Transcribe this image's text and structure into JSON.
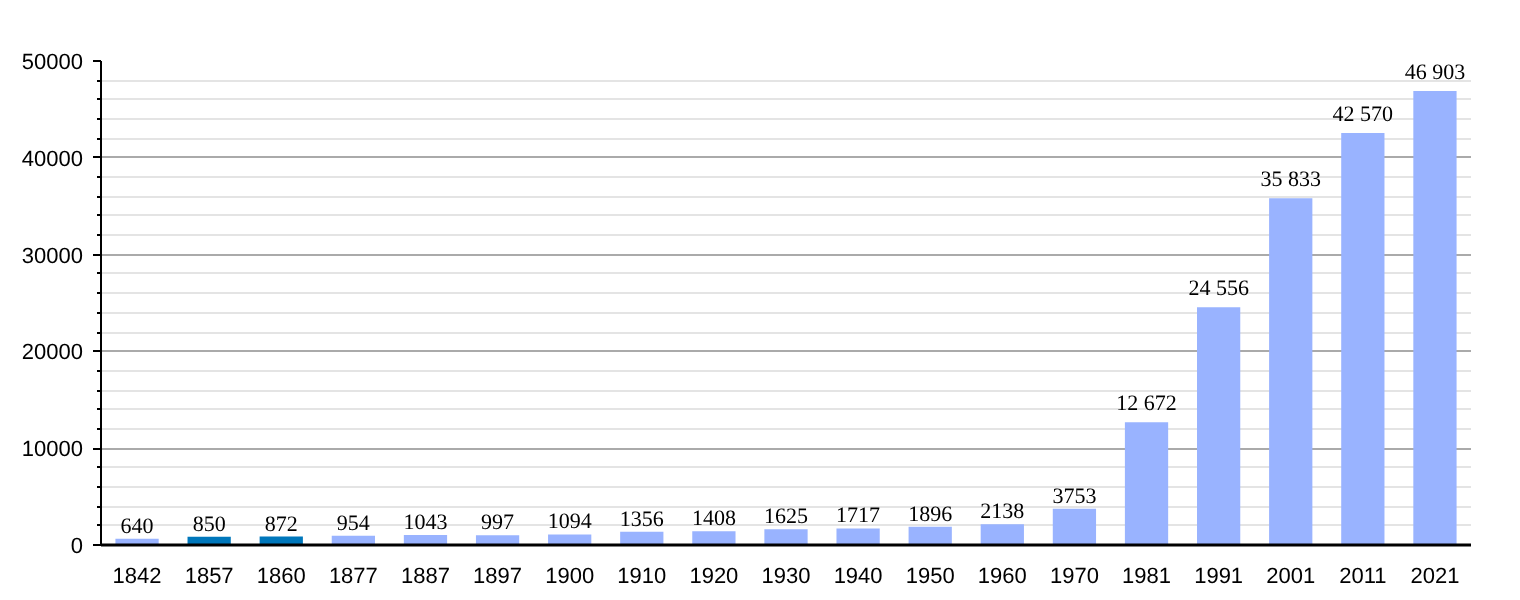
{
  "chart_data": {
    "type": "bar",
    "categories": [
      "1842",
      "1857",
      "1860",
      "1877",
      "1887",
      "1897",
      "1900",
      "1910",
      "1920",
      "1930",
      "1940",
      "1950",
      "1960",
      "1970",
      "1981",
      "1991",
      "2001",
      "2011",
      "2021"
    ],
    "values": [
      640,
      850,
      872,
      954,
      1043,
      997,
      1094,
      1356,
      1408,
      1625,
      1717,
      1896,
      2138,
      3753,
      12672,
      24556,
      35833,
      42570,
      46903
    ],
    "colors": [
      "#99b3ff",
      "#0077bb",
      "#0077bb",
      "#99b3ff",
      "#99b3ff",
      "#99b3ff",
      "#99b3ff",
      "#99b3ff",
      "#99b3ff",
      "#99b3ff",
      "#99b3ff",
      "#99b3ff",
      "#99b3ff",
      "#99b3ff",
      "#99b3ff",
      "#99b3ff",
      "#99b3ff",
      "#99b3ff",
      "#99b3ff"
    ],
    "value_labels": [
      "640",
      "850",
      "872",
      "954",
      "1043",
      "997",
      "1094",
      "1356",
      "1408",
      "1625",
      "1717",
      "1896",
      "2138",
      "3753",
      "12 672",
      "24 556",
      "35 833",
      "42 570",
      "46 903"
    ],
    "ylim": [
      0,
      50000
    ],
    "yticks": [
      0,
      10000,
      20000,
      30000,
      40000,
      50000
    ],
    "grid": "y"
  }
}
